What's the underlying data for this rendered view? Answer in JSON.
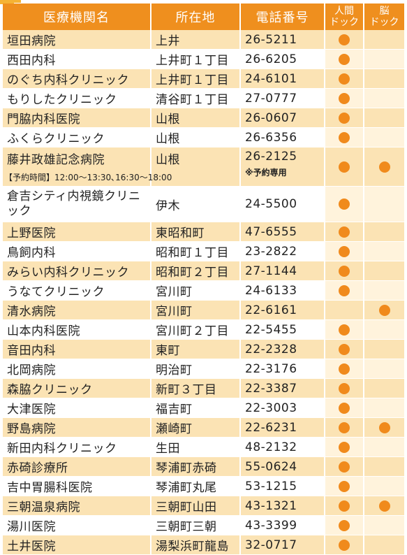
{
  "header": {
    "name": "医療機関名",
    "address": "所在地",
    "phone": "電話番号",
    "ningen_line1": "人間",
    "ningen_line2": "ドック",
    "brain_line1": "脳",
    "brain_line2": "ドック"
  },
  "colors": {
    "header_bg": "#ef8f1e",
    "row_alt": "#fbe3b4",
    "dot": "#f08a1c"
  },
  "rows": [
    {
      "name": "垣田病院",
      "address": "上井",
      "phone": "26-5211",
      "ningen": true,
      "brain": false
    },
    {
      "name": "西田内科",
      "address": "上井町１丁目",
      "phone": "26-6205",
      "ningen": true,
      "brain": false
    },
    {
      "name": "のぐち内科クリニック",
      "address": "上井町１丁目",
      "phone": "24-6101",
      "ningen": true,
      "brain": false
    },
    {
      "name": "もりしたクリニック",
      "address": "清谷町１丁目",
      "phone": "27-0777",
      "ningen": true,
      "brain": false
    },
    {
      "name": "門脇内科医院",
      "address": "山根",
      "phone": "26-0607",
      "ningen": true,
      "brain": false
    },
    {
      "name": "ふくらクリニック",
      "address": "山根",
      "phone": "26-6356",
      "ningen": true,
      "brain": false
    },
    {
      "name": "藤井政雄記念病院",
      "address": "山根",
      "phone": "26-2125",
      "ningen": true,
      "brain": true,
      "note": "【予約時間】12:00～13:30､16:30～18:00",
      "phone_note": "※予約専用"
    },
    {
      "name": "倉吉シティ内視鏡クリニック",
      "address": "伊木",
      "phone": "24-5500",
      "ningen": true,
      "brain": false
    },
    {
      "name": "上野医院",
      "address": "東昭和町",
      "phone": "47-6555",
      "ningen": true,
      "brain": false
    },
    {
      "name": "鳥飼内科",
      "address": "昭和町１丁目",
      "phone": "23-2822",
      "ningen": true,
      "brain": false
    },
    {
      "name": "みらい内科クリニック",
      "address": "昭和町２丁目",
      "phone": "27-1144",
      "ningen": true,
      "brain": false
    },
    {
      "name": "うなてクリニック",
      "address": "宮川町",
      "phone": "24-6133",
      "ningen": true,
      "brain": false
    },
    {
      "name": "清水病院",
      "address": "宮川町",
      "phone": "22-6161",
      "ningen": false,
      "brain": true
    },
    {
      "name": "山本内科医院",
      "address": "宮川町２丁目",
      "phone": "22-5455",
      "ningen": true,
      "brain": false
    },
    {
      "name": "音田内科",
      "address": "東町",
      "phone": "22-2328",
      "ningen": true,
      "brain": false
    },
    {
      "name": "北岡病院",
      "address": "明治町",
      "phone": "22-3176",
      "ningen": true,
      "brain": false
    },
    {
      "name": "森脇クリニック",
      "address": "新町３丁目",
      "phone": "22-3387",
      "ningen": true,
      "brain": false
    },
    {
      "name": "大津医院",
      "address": "福吉町",
      "phone": "22-3003",
      "ningen": true,
      "brain": false
    },
    {
      "name": "野島病院",
      "address": "瀬崎町",
      "phone": "22-6231",
      "ningen": true,
      "brain": true
    },
    {
      "name": "新田内科クリニック",
      "address": "生田",
      "phone": "48-2132",
      "ningen": true,
      "brain": false
    },
    {
      "name": "赤碕診療所",
      "address": "琴浦町赤碕",
      "phone": "55-0624",
      "ningen": true,
      "brain": false
    },
    {
      "name": "吉中胃腸科医院",
      "address": "琴浦町丸尾",
      "phone": "53-1215",
      "ningen": true,
      "brain": false
    },
    {
      "name": "三朝温泉病院",
      "address": "三朝町山田",
      "phone": "43-1321",
      "ningen": true,
      "brain": true
    },
    {
      "name": "湯川医院",
      "address": "三朝町三朝",
      "phone": "43-3399",
      "ningen": true,
      "brain": false
    },
    {
      "name": "土井医院",
      "address": "湯梨浜町龍島",
      "phone": "32-0717",
      "ningen": true,
      "brain": false
    }
  ]
}
